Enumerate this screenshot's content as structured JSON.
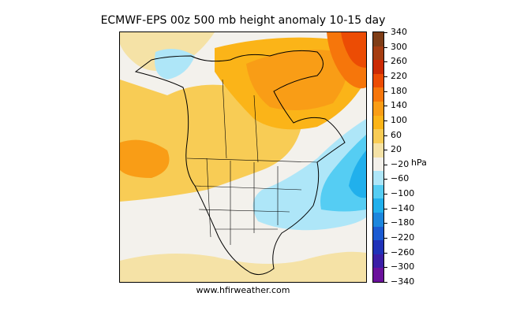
{
  "title": "ECMWF-EPS 00z 500 mb height anomaly 10-15 day",
  "credit": "www.hfirweather.com",
  "colorbar": {
    "unit": "hPa",
    "ticks": [
      "340",
      "300",
      "260",
      "220",
      "180",
      "140",
      "100",
      "60",
      "20",
      "−20",
      "−60",
      "−100",
      "−140",
      "−180",
      "−220",
      "−260",
      "−300",
      "−340"
    ],
    "colors": [
      "#7f3d17",
      "#a53d12",
      "#cc2a04",
      "#ec4c04",
      "#f6760b",
      "#f99d16",
      "#fbb418",
      "#f8cc55",
      "#f5e2a6",
      "#f3f0ea",
      "#aee6f8",
      "#55cdf3",
      "#21b0ec",
      "#1c86dd",
      "#1b5bd2",
      "#2032b8",
      "#3b1ea6",
      "#6a119b"
    ]
  }
}
